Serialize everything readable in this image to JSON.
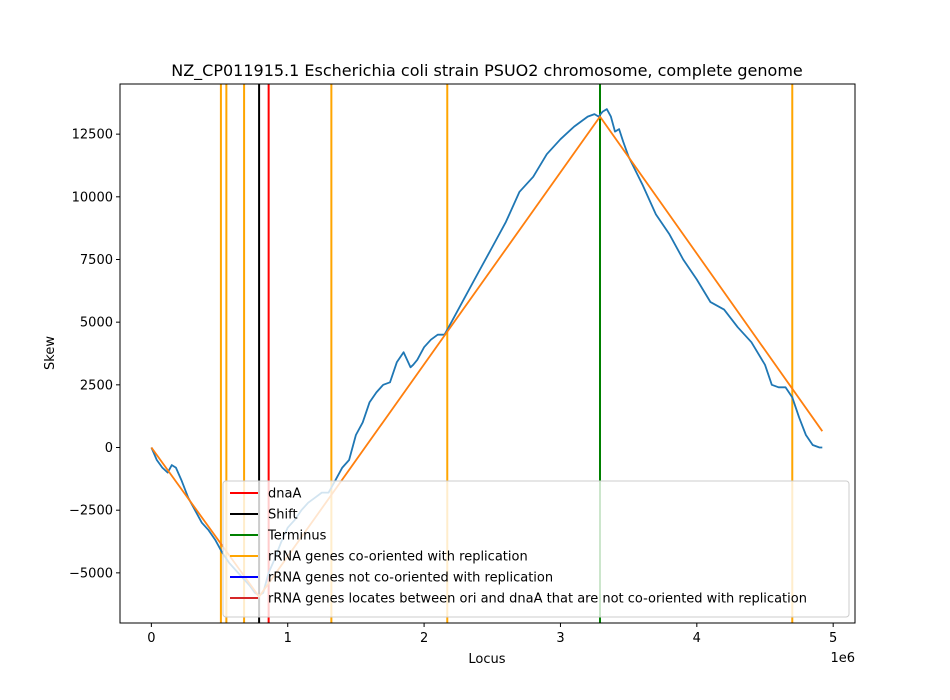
{
  "chart_data": {
    "type": "line",
    "title": "NZ_CP011915.1 Escherichia coli strain PSUO2 chromosome, complete genome",
    "xlabel": "Locus",
    "ylabel": "Skew",
    "x_offset_text": "1e6",
    "xlim": [
      -230000,
      5160000
    ],
    "ylim": [
      -7000,
      14500
    ],
    "x_ticks": [
      {
        "value": 0,
        "label": "0"
      },
      {
        "value": 1000000,
        "label": "1"
      },
      {
        "value": 2000000,
        "label": "2"
      },
      {
        "value": 3000000,
        "label": "3"
      },
      {
        "value": 4000000,
        "label": "4"
      },
      {
        "value": 5000000,
        "label": "5"
      }
    ],
    "y_ticks": [
      {
        "value": -5000,
        "label": "−5000"
      },
      {
        "value": -2500,
        "label": "−2500"
      },
      {
        "value": 0,
        "label": "0"
      },
      {
        "value": 2500,
        "label": "2500"
      },
      {
        "value": 5000,
        "label": "5000"
      },
      {
        "value": 7500,
        "label": "7500"
      },
      {
        "value": 10000,
        "label": "10000"
      },
      {
        "value": 12500,
        "label": "12500"
      }
    ],
    "grid": false,
    "legend_position": "lower-right",
    "series": [
      {
        "color": "#1f77b4",
        "x": [
          0,
          40000,
          80000,
          120000,
          150000,
          180000,
          220000,
          270000,
          320000,
          370000,
          420000,
          470000,
          520000,
          570000,
          620000,
          670000,
          720000,
          760000,
          790000,
          820000,
          860000,
          900000,
          950000,
          1000000,
          1050000,
          1100000,
          1150000,
          1200000,
          1250000,
          1300000,
          1350000,
          1400000,
          1450000,
          1500000,
          1550000,
          1600000,
          1650000,
          1700000,
          1750000,
          1800000,
          1850000,
          1900000,
          1920000,
          1950000,
          2000000,
          2050000,
          2100000,
          2150000,
          2200000,
          2300000,
          2400000,
          2500000,
          2600000,
          2700000,
          2800000,
          2900000,
          3000000,
          3100000,
          3200000,
          3250000,
          3280000,
          3310000,
          3340000,
          3370000,
          3400000,
          3430000,
          3460000,
          3500000,
          3600000,
          3700000,
          3800000,
          3900000,
          4000000,
          4100000,
          4200000,
          4300000,
          4400000,
          4500000,
          4550000,
          4600000,
          4650000,
          4700000,
          4750000,
          4800000,
          4850000,
          4900000,
          4920000
        ],
        "values": [
          0,
          -500,
          -800,
          -1000,
          -700,
          -800,
          -1300,
          -2000,
          -2500,
          -3000,
          -3300,
          -3700,
          -4200,
          -4600,
          -4900,
          -5200,
          -5500,
          -5800,
          -5900,
          -5800,
          -5000,
          -4500,
          -3800,
          -3200,
          -2900,
          -2500,
          -2200,
          -2000,
          -1800,
          -1800,
          -1300,
          -800,
          -500,
          500,
          1000,
          1800,
          2200,
          2500,
          2600,
          3400,
          3800,
          3200,
          3300,
          3500,
          4000,
          4300,
          4500,
          4500,
          5000,
          6000,
          7000,
          8000,
          9000,
          10200,
          10800,
          11700,
          12300,
          12800,
          13200,
          13300,
          13200,
          13400,
          13500,
          13200,
          12600,
          12700,
          12200,
          11600,
          10500,
          9300,
          8500,
          7500,
          6700,
          5800,
          5500,
          4800,
          4200,
          3300,
          2500,
          2400,
          2400,
          2000,
          1200,
          500,
          100,
          0,
          0
        ]
      },
      {
        "color": "#ff7f0e",
        "x": [
          0,
          790000,
          3290000,
          4920000
        ],
        "values": [
          0,
          -5950,
          13200,
          650
        ]
      }
    ],
    "vlines": [
      {
        "x": 510000,
        "color": "#ffa500"
      },
      {
        "x": 550000,
        "color": "#ffa500"
      },
      {
        "x": 680000,
        "color": "#ffa500"
      },
      {
        "x": 1320000,
        "color": "#ffa500"
      },
      {
        "x": 2170000,
        "color": "#ffa500"
      },
      {
        "x": 4700000,
        "color": "#ffa500"
      },
      {
        "x": 790000,
        "color": "#000000"
      },
      {
        "x": 860000,
        "color": "#ff0000"
      },
      {
        "x": 3290000,
        "color": "#008000"
      }
    ],
    "legend": [
      {
        "label": "dnaA",
        "color": "#ff0000"
      },
      {
        "label": "Shift",
        "color": "#000000"
      },
      {
        "label": "Terminus",
        "color": "#008000"
      },
      {
        "label": "rRNA genes co-oriented with replication",
        "color": "#ffa500"
      },
      {
        "label": "rRNA genes not co-oriented with replication",
        "color": "#0000ff"
      },
      {
        "label": "rRNA genes locates between ori and dnaA that are not co-oriented with replication",
        "color": "#d62728"
      }
    ]
  }
}
